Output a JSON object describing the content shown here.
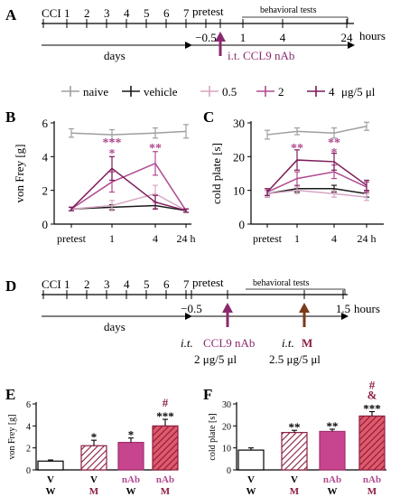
{
  "panel_a": {
    "letter": "A",
    "ccl_label": "CCI",
    "day_ticks": [
      "1",
      "2",
      "3",
      "4",
      "5",
      "6",
      "7"
    ],
    "days_label": "days",
    "pretest_label": "pretest",
    "behavioral_label": "behavioral tests",
    "time_ticks": [
      "−0.5",
      "0",
      "1",
      "4",
      "24"
    ],
    "hours_label": "hours",
    "injection_label": "i.t. CCL9 nAb"
  },
  "legend": {
    "entries": [
      {
        "label": "naive",
        "color": "#9e9e9e"
      },
      {
        "label": "vehicle",
        "color": "#1a1a1a"
      },
      {
        "label": "0.5",
        "color": "#d6a6c4"
      },
      {
        "label": "2",
        "color": "#b04a90"
      },
      {
        "label": "4",
        "color": "#7d1d5a"
      }
    ],
    "unit": "μg/5 μl"
  },
  "panel_b": {
    "letter": "B",
    "chart_data": {
      "type": "line",
      "ylabel": "von Frey [g]",
      "categories": [
        "pretest",
        "1",
        "4",
        "24 h"
      ],
      "ylim": [
        0,
        6
      ],
      "yticks": [
        "0",
        "2",
        "4",
        "6"
      ],
      "series": [
        {
          "name": "naive",
          "color": "#9e9e9e",
          "values": [
            5.4,
            5.3,
            5.4,
            5.5
          ],
          "err": [
            0.25,
            0.3,
            0.3,
            0.4
          ]
        },
        {
          "name": "vehicle",
          "color": "#1a1a1a",
          "values": [
            0.9,
            1.0,
            1.1,
            0.8
          ],
          "err": [
            0.1,
            0.15,
            0.2,
            0.1
          ]
        },
        {
          "name": "0.5",
          "color": "#d6a6c4",
          "values": [
            0.9,
            1.1,
            1.8,
            0.8
          ],
          "err": [
            0.1,
            0.3,
            0.5,
            0.1
          ]
        },
        {
          "name": "2",
          "color": "#b04a90",
          "values": [
            0.9,
            2.5,
            3.6,
            0.8
          ],
          "err": [
            0.1,
            0.6,
            0.7,
            0.1
          ]
        },
        {
          "name": "4",
          "color": "#7d1d5a",
          "values": [
            0.9,
            3.3,
            1.3,
            0.8
          ],
          "err": [
            0.1,
            0.7,
            0.4,
            0.1
          ]
        }
      ],
      "annotations": [
        {
          "x": "1",
          "text": "***"
        },
        {
          "x": "1",
          "text": "*"
        },
        {
          "x": "4",
          "text": "**"
        }
      ]
    }
  },
  "panel_c": {
    "letter": "C",
    "chart_data": {
      "type": "line",
      "ylabel": "cold plate [s]",
      "categories": [
        "pretest",
        "1",
        "4",
        "24 h"
      ],
      "ylim": [
        0,
        30
      ],
      "yticks": [
        "0",
        "10",
        "20",
        "30"
      ],
      "series": [
        {
          "name": "naive",
          "color": "#9e9e9e",
          "values": [
            26.5,
            27.5,
            27,
            29
          ],
          "err": [
            1.3,
            1.0,
            1.5,
            1.2
          ]
        },
        {
          "name": "vehicle",
          "color": "#1a1a1a",
          "values": [
            9,
            10.5,
            10.5,
            9
          ],
          "err": [
            1,
            1,
            1,
            1
          ]
        },
        {
          "name": "0.5",
          "color": "#d6a6c4",
          "values": [
            9,
            10,
            9,
            8
          ],
          "err": [
            1,
            1,
            1,
            1
          ]
        },
        {
          "name": "2",
          "color": "#b04a90",
          "values": [
            9.5,
            13.5,
            15.5,
            11
          ],
          "err": [
            1,
            2,
            2,
            1.5
          ]
        },
        {
          "name": "4",
          "color": "#7d1d5a",
          "values": [
            9.5,
            19,
            18.5,
            11.5
          ],
          "err": [
            1,
            3,
            2.5,
            1.5
          ]
        }
      ],
      "annotations": [
        {
          "x": "1",
          "text": "**"
        },
        {
          "x": "4",
          "text": "**"
        },
        {
          "x": "4",
          "text": "*"
        }
      ]
    }
  },
  "panel_d": {
    "letter": "D",
    "ccl_label": "CCI",
    "day_ticks": [
      "1",
      "2",
      "3",
      "4",
      "5",
      "6",
      "7"
    ],
    "days_label": "days",
    "pretest_label": "pretest",
    "behavioral_label": "behavioral tests",
    "time_ticks": [
      "−0.5",
      "0",
      "1",
      "1.5"
    ],
    "hours_label": "hours",
    "injection1_prefix": "i.t.",
    "injection1_name": "CCL9 nAb",
    "injection1_dose": "2 μg/5 μl",
    "injection2_prefix": "i.t.",
    "injection2_name": "M",
    "injection2_dose": "2.5 μg/5 μl"
  },
  "panel_e": {
    "letter": "E",
    "chart_data": {
      "type": "bar",
      "ylabel": "von Frey [g]",
      "ylim": [
        0,
        6
      ],
      "yticks": [
        "0",
        "2",
        "4",
        "6"
      ],
      "bars": [
        {
          "top": "V",
          "bottom": "W",
          "value": 0.8,
          "err": 0.1,
          "style": "white",
          "sig": ""
        },
        {
          "top": "V",
          "bottom": "M",
          "value": 2.2,
          "err": 0.5,
          "style": "hatch",
          "sig": "*"
        },
        {
          "top": "nAb",
          "bottom": "W",
          "value": 2.5,
          "err": 0.4,
          "style": "solid",
          "sig": "*"
        },
        {
          "top": "nAb",
          "bottom": "M",
          "value": 4.0,
          "err": 0.6,
          "style": "hatch-dark",
          "sig": "***",
          "sig2": "#"
        }
      ]
    }
  },
  "panel_f": {
    "letter": "F",
    "chart_data": {
      "type": "bar",
      "ylabel": "cold plate [s]",
      "ylim": [
        0,
        30
      ],
      "yticks": [
        "0",
        "10",
        "20",
        "30"
      ],
      "bars": [
        {
          "top": "V",
          "bottom": "W",
          "value": 9,
          "err": 1,
          "style": "white",
          "sig": ""
        },
        {
          "top": "V",
          "bottom": "M",
          "value": 17,
          "err": 1,
          "style": "hatch",
          "sig": "**"
        },
        {
          "top": "nAb",
          "bottom": "W",
          "value": 17.5,
          "err": 1,
          "style": "solid",
          "sig": "**"
        },
        {
          "top": "nAb",
          "bottom": "M",
          "value": 24.5,
          "err": 2,
          "style": "hatch-dark",
          "sig": "***",
          "sig2": "&",
          "sig3": "#"
        }
      ]
    }
  }
}
